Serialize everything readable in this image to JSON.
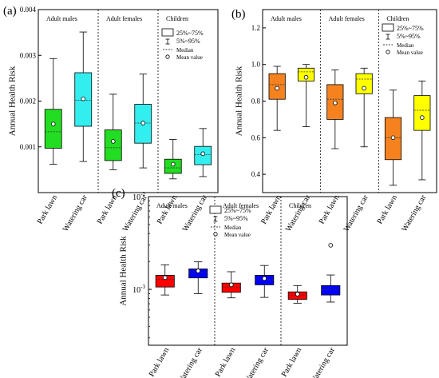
{
  "chart_data": [
    {
      "panel_label": "(a)",
      "type": "box",
      "ylabel": "Annual Health Risk",
      "yscale": "linear",
      "ylim": [
        0,
        0.004
      ],
      "yticks": [
        0.001,
        0.002,
        0.003,
        0.004
      ],
      "ytick_labels": [
        "0.001",
        "0.002",
        "0.003",
        "0.004"
      ],
      "groups": [
        "Adult males",
        "Adult females",
        "Children"
      ],
      "categories": [
        "Park lawn",
        "Watering car"
      ],
      "legend": {
        "box": "25%~75%",
        "whisker": "5%~95%",
        "median": "Median",
        "mean": "Mean value"
      },
      "boxes": [
        {
          "group": 0,
          "cat": 0,
          "color": "#22dd22",
          "whislo": 0.00062,
          "q1": 0.00097,
          "med": 0.00133,
          "q3": 0.00182,
          "whishi": 0.00293,
          "mean": 0.0015
        },
        {
          "group": 0,
          "cat": 1,
          "color": "#33eeee",
          "whislo": 0.00068,
          "q1": 0.00145,
          "med": 0.00202,
          "q3": 0.00262,
          "whishi": 0.00351,
          "mean": 0.00205
        },
        {
          "group": 1,
          "cat": 0,
          "color": "#22dd22",
          "whislo": 0.0005,
          "q1": 0.0007,
          "med": 0.00098,
          "q3": 0.00137,
          "whishi": 0.00215,
          "mean": 0.00112
        },
        {
          "group": 1,
          "cat": 1,
          "color": "#33eeee",
          "whislo": 0.00054,
          "q1": 0.00108,
          "med": 0.00152,
          "q3": 0.00193,
          "whishi": 0.00259,
          "mean": 0.00152
        },
        {
          "group": 2,
          "cat": 0,
          "color": "#22dd22",
          "whislo": 0.0003,
          "q1": 0.00042,
          "med": 0.00054,
          "q3": 0.00073,
          "whishi": 0.00116,
          "mean": 0.00062
        },
        {
          "group": 2,
          "cat": 1,
          "color": "#33eeee",
          "whislo": 0.00035,
          "q1": 0.00061,
          "med": 0.00083,
          "q3": 0.00101,
          "whishi": 0.0014,
          "mean": 0.00085
        }
      ]
    },
    {
      "panel_label": "(b)",
      "type": "box",
      "ylabel": "Annual Health Risk",
      "yscale": "linear",
      "ylim": [
        0.3,
        1.3
      ],
      "yticks": [
        0.4,
        0.6,
        0.8,
        1.0,
        1.2
      ],
      "ytick_labels": [
        "0.4",
        "0.6",
        "0.8",
        "1.0",
        "1.2"
      ],
      "groups": [
        "Adult males",
        "Adult females",
        "Children"
      ],
      "categories": [
        "Park lawn",
        "Watering car"
      ],
      "legend": {
        "box": "25%~75%",
        "whisker": "5%~95%",
        "median": "Median",
        "mean": "Mean value"
      },
      "boxes": [
        {
          "group": 0,
          "cat": 0,
          "color": "#f5821f",
          "whislo": 0.64,
          "q1": 0.81,
          "med": 0.89,
          "q3": 0.95,
          "whishi": 0.99,
          "mean": 0.87
        },
        {
          "group": 0,
          "cat": 1,
          "color": "#ffff00",
          "whislo": 0.66,
          "q1": 0.91,
          "med": 0.96,
          "q3": 0.98,
          "whishi": 1.0,
          "mean": 0.93
        },
        {
          "group": 1,
          "cat": 0,
          "color": "#f5821f",
          "whislo": 0.54,
          "q1": 0.7,
          "med": 0.81,
          "q3": 0.89,
          "whishi": 0.97,
          "mean": 0.79
        },
        {
          "group": 1,
          "cat": 1,
          "color": "#ffff00",
          "whislo": 0.55,
          "q1": 0.84,
          "med": 0.92,
          "q3": 0.95,
          "whishi": 0.98,
          "mean": 0.87
        },
        {
          "group": 2,
          "cat": 0,
          "color": "#f5821f",
          "whislo": 0.34,
          "q1": 0.48,
          "med": 0.6,
          "q3": 0.71,
          "whishi": 0.86,
          "mean": 0.6
        },
        {
          "group": 2,
          "cat": 1,
          "color": "#ffff00",
          "whislo": 0.37,
          "q1": 0.64,
          "med": 0.75,
          "q3": 0.83,
          "whishi": 0.91,
          "mean": 0.71
        }
      ]
    },
    {
      "panel_label": "(c)",
      "type": "box",
      "ylabel": "Annual Health Risk",
      "yscale": "log",
      "ylim": [
        0.00025,
        0.01
      ],
      "yticks": [
        0.001,
        0.01
      ],
      "ytick_labels": [
        {
          "base": "10",
          "exp": "-3"
        },
        {
          "base": "10",
          "exp": "-2"
        }
      ],
      "groups": [
        "Adult males",
        "Adult females",
        "Children"
      ],
      "categories": [
        "Park lawn",
        "Watering car"
      ],
      "legend": {
        "box": "25%~75%",
        "whisker": "5%~95%",
        "median": "Median",
        "mean": "Mean value"
      },
      "boxes": [
        {
          "group": 0,
          "cat": 0,
          "color": "#ff0000",
          "whislo": 0.00087,
          "q1": 0.00106,
          "med": 0.00128,
          "q3": 0.00142,
          "whishi": 0.00184,
          "mean": 0.00134
        },
        {
          "group": 0,
          "cat": 1,
          "color": "#0000ff",
          "whislo": 0.0009,
          "q1": 0.00133,
          "med": 0.00154,
          "q3": 0.00166,
          "whishi": 0.00198,
          "mean": 0.00158
        },
        {
          "group": 1,
          "cat": 0,
          "color": "#ff0000",
          "whislo": 0.00081,
          "q1": 0.00093,
          "med": 0.00106,
          "q3": 0.00117,
          "whishi": 0.00155,
          "mean": 0.00112
        },
        {
          "group": 1,
          "cat": 1,
          "color": "#0000ff",
          "whislo": 0.00082,
          "q1": 0.00112,
          "med": 0.00127,
          "q3": 0.00142,
          "whishi": 0.00181,
          "mean": 0.00131
        },
        {
          "group": 2,
          "cat": 0,
          "color": "#ff0000",
          "whislo": 0.00071,
          "q1": 0.00078,
          "med": 0.00087,
          "q3": 0.00094,
          "whishi": 0.0011,
          "mean": 0.00089
        },
        {
          "group": 2,
          "cat": 1,
          "color": "#0000ff",
          "whislo": 0.00073,
          "q1": 0.00087,
          "med": 0.00099,
          "q3": 0.0011,
          "whishi": 0.00143,
          "mean": 0.00299
        }
      ]
    }
  ]
}
